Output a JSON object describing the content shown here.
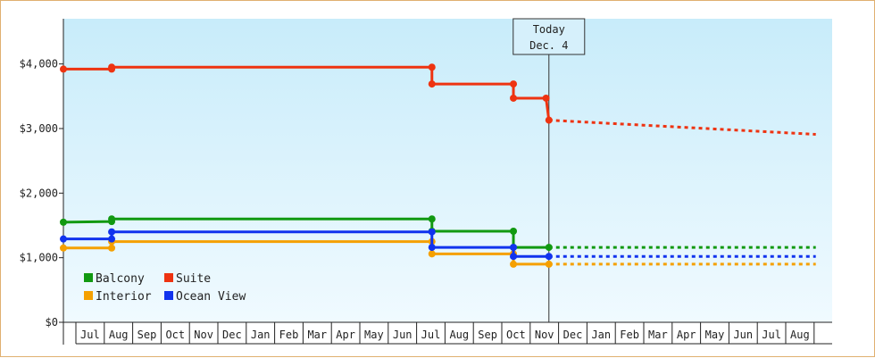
{
  "chart_data": {
    "type": "line",
    "step": true,
    "y_ticks": [
      "$0",
      "$1,000",
      "$2,000",
      "$3,000",
      "$4,000"
    ],
    "y_tick_values": [
      0,
      1000,
      2000,
      3000,
      4000
    ],
    "ylim": [
      0,
      4700
    ],
    "x_months": [
      "Jul",
      "Aug",
      "Sep",
      "Oct",
      "Nov",
      "Dec",
      "Jan",
      "Feb",
      "Mar",
      "Apr",
      "May",
      "Jun",
      "Jul",
      "Aug",
      "Sep",
      "Oct",
      "Nov",
      "Dec",
      "Jan",
      "Feb",
      "Mar",
      "Apr",
      "May",
      "Jun",
      "Jul",
      "Aug"
    ],
    "xlim": [
      0,
      26.5
    ],
    "today": {
      "line1": "Today",
      "line2": "Dec. 4",
      "x": 17.1
    },
    "legend": {
      "position": "bottom-left"
    },
    "series": [
      {
        "name": "Balcony",
        "color": "#119911",
        "points": [
          [
            0,
            1550
          ],
          [
            1.7,
            1560
          ],
          [
            1.7,
            1600
          ],
          [
            12.98,
            1600
          ],
          [
            12.98,
            1410
          ],
          [
            15.85,
            1410
          ],
          [
            15.85,
            1160
          ],
          [
            17.1,
            1160
          ]
        ],
        "markers": [
          [
            0,
            1550
          ],
          [
            1.7,
            1560
          ],
          [
            1.7,
            1600
          ],
          [
            12.98,
            1600
          ],
          [
            12.98,
            1410
          ],
          [
            15.85,
            1410
          ],
          [
            15.85,
            1160
          ],
          [
            17.1,
            1160
          ]
        ],
        "projection": [
          [
            17.1,
            1160
          ],
          [
            26.5,
            1160
          ]
        ]
      },
      {
        "name": "Suite",
        "color": "#ee3311",
        "points": [
          [
            0,
            3920
          ],
          [
            1.7,
            3920
          ],
          [
            1.7,
            3950
          ],
          [
            12.98,
            3950
          ],
          [
            12.98,
            3690
          ],
          [
            15.85,
            3690
          ],
          [
            15.85,
            3470
          ],
          [
            17.0,
            3470
          ],
          [
            17.1,
            3130
          ]
        ],
        "markers": [
          [
            0,
            3920
          ],
          [
            1.7,
            3920
          ],
          [
            1.7,
            3950
          ],
          [
            12.98,
            3950
          ],
          [
            12.98,
            3690
          ],
          [
            15.85,
            3690
          ],
          [
            15.85,
            3470
          ],
          [
            17.0,
            3470
          ],
          [
            17.1,
            3130
          ]
        ],
        "projection": [
          [
            17.1,
            3130
          ],
          [
            26.5,
            2910
          ]
        ]
      },
      {
        "name": "Interior",
        "color": "#f5a000",
        "points": [
          [
            0,
            1150
          ],
          [
            1.7,
            1150
          ],
          [
            1.7,
            1250
          ],
          [
            12.98,
            1250
          ],
          [
            12.98,
            1060
          ],
          [
            15.85,
            1060
          ],
          [
            15.85,
            900
          ],
          [
            17.1,
            900
          ]
        ],
        "markers": [
          [
            0,
            1150
          ],
          [
            1.7,
            1150
          ],
          [
            1.7,
            1250
          ],
          [
            12.98,
            1250
          ],
          [
            12.98,
            1060
          ],
          [
            15.85,
            1060
          ],
          [
            15.85,
            900
          ],
          [
            17.1,
            900
          ]
        ],
        "projection": [
          [
            17.1,
            900
          ],
          [
            26.5,
            900
          ]
        ]
      },
      {
        "name": "Ocean View",
        "color": "#1133ee",
        "points": [
          [
            0,
            1290
          ],
          [
            1.7,
            1290
          ],
          [
            1.7,
            1400
          ],
          [
            12.98,
            1400
          ],
          [
            12.98,
            1160
          ],
          [
            15.85,
            1160
          ],
          [
            15.85,
            1020
          ],
          [
            17.1,
            1020
          ]
        ],
        "markers": [
          [
            0,
            1290
          ],
          [
            1.7,
            1290
          ],
          [
            1.7,
            1400
          ],
          [
            12.98,
            1400
          ],
          [
            12.98,
            1160
          ],
          [
            15.85,
            1160
          ],
          [
            15.85,
            1020
          ],
          [
            17.1,
            1020
          ]
        ],
        "projection": [
          [
            17.1,
            1020
          ],
          [
            26.5,
            1020
          ]
        ]
      }
    ]
  }
}
